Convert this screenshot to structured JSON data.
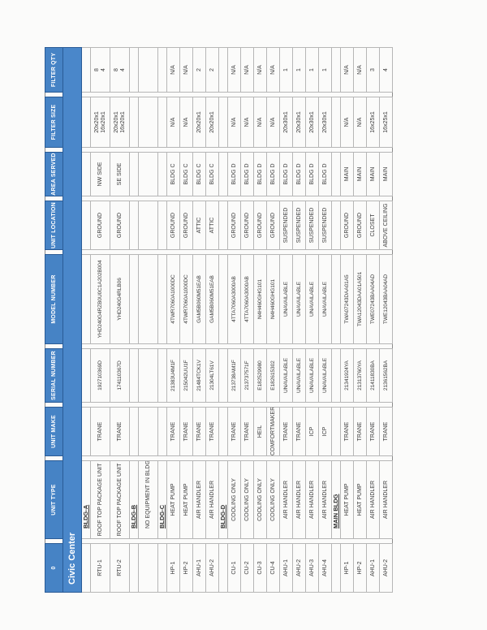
{
  "title": "Civic Center",
  "colors": {
    "header_blue": "#4683c5",
    "title_bar_blue": "#4a87ca",
    "header_border": "#2a5b96",
    "gridline": "#b6b6b6",
    "text": "#3b3b3b"
  },
  "table": {
    "columns": [
      {
        "key": "id",
        "label": "0"
      },
      {
        "key": "type",
        "label": "UNIT TYPE"
      },
      {
        "key": "make",
        "label": "UNIT MAKE"
      },
      {
        "key": "serial",
        "label": "SERIAL NUMBER"
      },
      {
        "key": "model",
        "label": "MODEL NUMBER"
      },
      {
        "key": "location",
        "label": "UNIT LOCATION"
      },
      {
        "key": "area",
        "label": "AREA SERVED"
      },
      {
        "key": "size",
        "label": "FILTER SIZE"
      },
      {
        "key": "qty",
        "label": "FILTER QTY"
      }
    ],
    "rows": [
      {
        "kind": "section",
        "label": "BLDG-A"
      },
      {
        "kind": "unit",
        "id": "RTU-1",
        "type": "ROOF TOP PACKAGE UNIT",
        "make": "TRANE",
        "serial": "192710369D",
        "model": "YHD240G4RZB0U0C1A202B004",
        "location": "GROUND",
        "area": "NW SIDE",
        "size": [
          "20x20x1",
          "16x20x1"
        ],
        "qty": [
          "8",
          "4"
        ]
      },
      {
        "kind": "unit",
        "id": "RTU-2",
        "type": "ROOF TOP PACKAGE UNIT",
        "make": "TRANE",
        "serial": "174110367D",
        "model": "YHD240G4RLB06",
        "location": "GROUND",
        "area": "SE SIDE",
        "size": [
          "20x20x1",
          "16x20x1"
        ],
        "qty": [
          "8",
          "4"
        ]
      },
      {
        "kind": "section",
        "label": "BLDG-B"
      },
      {
        "kind": "note",
        "label": "NO EQUIPMENT IN BLDG"
      },
      {
        "kind": "section",
        "label": "BLDG-C"
      },
      {
        "kind": "unit",
        "id": "HP-1",
        "type": "HEAT PUMP",
        "make": "TRANE",
        "serial": "21383U4M1F",
        "model": "4TWR7060A1000DC",
        "location": "GROUND",
        "area": "BLDG C",
        "size": "N/A",
        "qty": "N/A"
      },
      {
        "kind": "unit",
        "id": "HP-2",
        "type": "HEAT PUMP",
        "make": "TRANE",
        "serial": "215042UU1F",
        "model": "4TWR7060A1000DC",
        "location": "GROUND",
        "area": "BLDG C",
        "size": "N/A",
        "qty": "N/A"
      },
      {
        "kind": "unit",
        "id": "AHU-1",
        "type": "AIR HANDLER",
        "make": "TRANE",
        "serial": "21484TCK1V",
        "model": "GAM5B060M51EAB",
        "location": "ATTIC",
        "area": "BLDG C",
        "size": "20x20x1",
        "qty": "2"
      },
      {
        "kind": "unit",
        "id": "AHU-2",
        "type": "AIR HANDLER",
        "make": "TRANE",
        "serial": "21304LT61V",
        "model": "GAM5B060M51EAB",
        "location": "ATTIC",
        "area": "BLDG C",
        "size": "20x20x1",
        "qty": "2"
      },
      {
        "kind": "section",
        "label": "BLDG-D"
      },
      {
        "kind": "unit",
        "id": "CU-1",
        "type": "COOLING ONLY",
        "make": "TRANE",
        "serial": "213738AM1F",
        "model": "4TTA7060A3000AB",
        "location": "GROUND",
        "area": "BLDG D",
        "size": "N/A",
        "qty": "N/A"
      },
      {
        "kind": "unit",
        "id": "CU-2",
        "type": "COOLING ONLY",
        "make": "TRANE",
        "serial": "213737571F",
        "model": "4TTA7060A3000AB",
        "location": "GROUND",
        "area": "BLDG D",
        "size": "N/A",
        "qty": "N/A"
      },
      {
        "kind": "unit",
        "id": "CU-3",
        "type": "COOLING ONLY",
        "make": "HEIL",
        "serial": "E182529980",
        "model": "N4H460GHG101",
        "location": "GROUND",
        "area": "BLDG D",
        "size": "N/A",
        "qty": "N/A"
      },
      {
        "kind": "unit",
        "id": "CU-4",
        "type": "COOLING ONLY",
        "make": "COMFORTMAKER",
        "serial": "E182615302",
        "model": "N4H460GHG101",
        "location": "GROUND",
        "area": "BLDG D",
        "size": "N/A",
        "qty": "N/A"
      },
      {
        "kind": "unit",
        "id": "AHU-1",
        "type": "AIR HANDLER",
        "make": "TRANE",
        "serial": "UNAVAILABLE",
        "model": "UNAVAILABLE",
        "location": "SUSPENDED",
        "area": "BLDG D",
        "size": "20x30x1",
        "qty": "1"
      },
      {
        "kind": "unit",
        "id": "AHU-2",
        "type": "AIR HANDLER",
        "make": "TRANE",
        "serial": "UNAVAILABLE",
        "model": "UNAVAILABLE",
        "location": "SUSPENDED",
        "area": "BLDG D",
        "size": "20x30x1",
        "qty": "1"
      },
      {
        "kind": "unit",
        "id": "AHU-3",
        "type": "AIR HANDLER",
        "make": "ICP",
        "serial": "UNAVAILABLE",
        "model": "UNAVAILABLE",
        "location": "SUSPENDED",
        "area": "BLDG D",
        "size": "20x30x1",
        "qty": "1"
      },
      {
        "kind": "unit",
        "id": "AHU-4",
        "type": "AIR HANDLER",
        "make": "ICP",
        "serial": "UNAVAILABLE",
        "model": "UNAVAILABLE",
        "location": "SUSPENDED",
        "area": "BLDG D",
        "size": "20x30x1",
        "qty": "1"
      },
      {
        "kind": "section",
        "label": "MAIN BLDG"
      },
      {
        "kind": "unit",
        "id": "HP-1",
        "type": "HEAT PUMP",
        "make": "TRANE",
        "serial": "21341924YA",
        "model": "TWA07243DAA01A5",
        "location": "GROUND",
        "area": "MAIN",
        "size": "N/A",
        "qty": "N/A"
      },
      {
        "kind": "unit",
        "id": "HP-2",
        "type": "HEAT PUMP",
        "make": "TRANE",
        "serial": "21313760YA",
        "model": "TWA12043DAA01A501",
        "location": "GROUND",
        "area": "MAIN",
        "size": "N/A",
        "qty": "N/A"
      },
      {
        "kind": "unit",
        "id": "AHU-1",
        "type": "AIR HANDLER",
        "make": "TRANE",
        "serial": "21411830BA",
        "model": "TWE07243BAA04AD",
        "location": "CLOSET",
        "area": "MAIN",
        "size": "16x25x1",
        "qty": "3"
      },
      {
        "kind": "unit",
        "id": "AHU-2",
        "type": "AIR HANDLER",
        "make": "TRANE",
        "serial": "21361562BA",
        "model": "TWE12043BAA04AD",
        "location": "ABOVE CEILING",
        "area": "MAIN",
        "size": "16x25x1",
        "qty": "4"
      }
    ]
  }
}
